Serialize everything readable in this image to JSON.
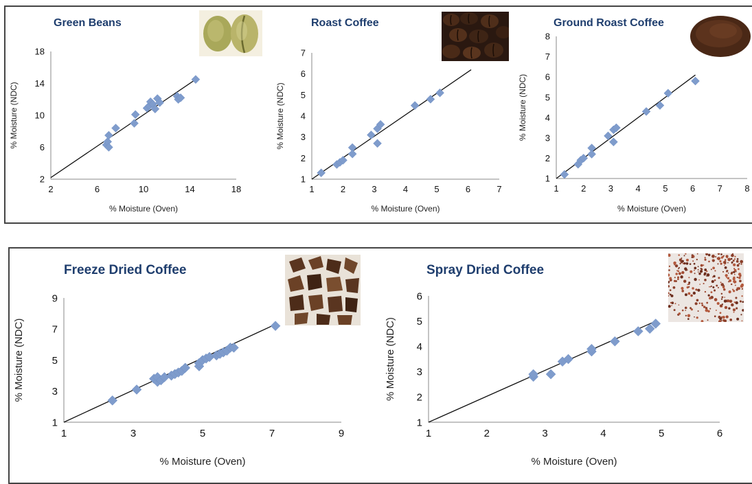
{
  "colors": {
    "marker": "#7f9ccc",
    "marker_stroke": "#6f8fc4",
    "fit_line": "#111111",
    "title": "#1f3e6e",
    "frame": "#444444"
  },
  "chart_data": [
    {
      "type": "scatter",
      "title": "Green Beans",
      "xlabel": "% Moisture (Oven)",
      "ylabel": "% Moisture (NDC)",
      "xlim": [
        2,
        18
      ],
      "ylim": [
        2,
        18
      ],
      "xticks": [
        "2",
        "6",
        "10",
        "14",
        "18"
      ],
      "yticks": [
        "2",
        "6",
        "10",
        "14",
        "18"
      ],
      "fit_line": [
        [
          2,
          2.2
        ],
        [
          14.5,
          14.5
        ]
      ],
      "points": [
        [
          6.8,
          6.3
        ],
        [
          6.9,
          6.7
        ],
        [
          7.0,
          7.5
        ],
        [
          7.0,
          6.0
        ],
        [
          7.6,
          8.4
        ],
        [
          9.2,
          9.0
        ],
        [
          9.3,
          10.1
        ],
        [
          10.3,
          10.9
        ],
        [
          10.5,
          11.2
        ],
        [
          10.6,
          11.7
        ],
        [
          10.8,
          11.4
        ],
        [
          11.0,
          10.8
        ],
        [
          11.2,
          12.1
        ],
        [
          11.4,
          11.6
        ],
        [
          12.9,
          12.4
        ],
        [
          13.0,
          12.0
        ],
        [
          13.2,
          12.2
        ],
        [
          14.5,
          14.5
        ]
      ],
      "image": "green-beans-photo"
    },
    {
      "type": "scatter",
      "title": "Roast Coffee",
      "xlabel": "% Moisture (Oven)",
      "ylabel": "% Moisture (NDC)",
      "xlim": [
        1,
        7
      ],
      "ylim": [
        1,
        7
      ],
      "xticks": [
        "1",
        "2",
        "3",
        "4",
        "5",
        "6",
        "7"
      ],
      "yticks": [
        "1",
        "2",
        "3",
        "4",
        "5",
        "6",
        "7"
      ],
      "fit_line": [
        [
          1,
          1.0
        ],
        [
          6.1,
          6.2
        ]
      ],
      "points": [
        [
          1.3,
          1.3
        ],
        [
          1.8,
          1.7
        ],
        [
          1.9,
          1.8
        ],
        [
          2.0,
          1.9
        ],
        [
          2.3,
          2.5
        ],
        [
          2.3,
          2.2
        ],
        [
          2.9,
          3.1
        ],
        [
          3.1,
          2.7
        ],
        [
          3.1,
          3.4
        ],
        [
          3.2,
          3.6
        ],
        [
          4.3,
          4.5
        ],
        [
          4.8,
          4.8
        ],
        [
          5.1,
          5.1
        ]
      ],
      "image": "roast-coffee-photo"
    },
    {
      "type": "scatter",
      "title": "Ground Roast Coffee",
      "xlabel": "% Moisture (Oven)",
      "ylabel": "% Moisture (NDC)",
      "xlim": [
        1,
        8
      ],
      "ylim": [
        1,
        8
      ],
      "xticks": [
        "1",
        "2",
        "3",
        "4",
        "5",
        "6",
        "7",
        "8"
      ],
      "yticks": [
        "1",
        "2",
        "3",
        "4",
        "5",
        "6",
        "7",
        "8"
      ],
      "fit_line": [
        [
          1,
          1.0
        ],
        [
          6.1,
          6.1
        ]
      ],
      "points": [
        [
          1.3,
          1.2
        ],
        [
          1.8,
          1.7
        ],
        [
          1.9,
          1.9
        ],
        [
          2.0,
          2.0
        ],
        [
          2.3,
          2.5
        ],
        [
          2.3,
          2.2
        ],
        [
          2.9,
          3.1
        ],
        [
          3.1,
          2.8
        ],
        [
          3.1,
          3.4
        ],
        [
          3.2,
          3.5
        ],
        [
          4.3,
          4.3
        ],
        [
          4.8,
          4.6
        ],
        [
          5.1,
          5.2
        ],
        [
          6.1,
          5.8
        ]
      ],
      "image": "ground-roast-photo"
    },
    {
      "type": "scatter",
      "title": "Freeze Dried Coffee",
      "xlabel": "% Moisture (Oven)",
      "ylabel": "% Moisture (NDC)",
      "xlim": [
        1,
        9
      ],
      "ylim": [
        1,
        9
      ],
      "xticks": [
        "1",
        "3",
        "5",
        "7",
        "9"
      ],
      "yticks": [
        "1",
        "3",
        "5",
        "7",
        "9"
      ],
      "fit_line": [
        [
          1,
          1.0
        ],
        [
          7.1,
          7.3
        ]
      ],
      "points": [
        [
          2.4,
          2.4
        ],
        [
          3.1,
          3.1
        ],
        [
          3.6,
          3.8
        ],
        [
          3.7,
          3.6
        ],
        [
          3.7,
          3.9
        ],
        [
          3.8,
          3.7
        ],
        [
          3.9,
          3.9
        ],
        [
          4.1,
          4.0
        ],
        [
          4.2,
          4.1
        ],
        [
          4.3,
          4.2
        ],
        [
          4.4,
          4.3
        ],
        [
          4.5,
          4.5
        ],
        [
          4.9,
          4.6
        ],
        [
          4.9,
          4.8
        ],
        [
          5.0,
          5.0
        ],
        [
          5.1,
          5.1
        ],
        [
          5.2,
          5.2
        ],
        [
          5.4,
          5.3
        ],
        [
          5.5,
          5.4
        ],
        [
          5.6,
          5.5
        ],
        [
          5.7,
          5.6
        ],
        [
          5.8,
          5.8
        ],
        [
          5.9,
          5.8
        ],
        [
          7.1,
          7.2
        ]
      ],
      "image": "freeze-dried-photo"
    },
    {
      "type": "scatter",
      "title": "Spray Dried Coffee",
      "xlabel": "% Moisture (Oven)",
      "ylabel": "% Moisture (NDC)",
      "xlim": [
        1,
        6
      ],
      "ylim": [
        1,
        6
      ],
      "xticks": [
        "1",
        "2",
        "3",
        "4",
        "5",
        "6"
      ],
      "yticks": [
        "1",
        "2",
        "3",
        "4",
        "5",
        "6"
      ],
      "fit_line": [
        [
          1,
          1.0
        ],
        [
          4.9,
          5.0
        ]
      ],
      "points": [
        [
          2.8,
          2.8
        ],
        [
          2.8,
          2.9
        ],
        [
          3.1,
          2.9
        ],
        [
          3.3,
          3.4
        ],
        [
          3.4,
          3.5
        ],
        [
          3.8,
          3.8
        ],
        [
          3.8,
          3.9
        ],
        [
          4.2,
          4.2
        ],
        [
          4.6,
          4.6
        ],
        [
          4.8,
          4.7
        ],
        [
          4.9,
          4.9
        ]
      ],
      "image": "spray-dried-photo"
    }
  ]
}
